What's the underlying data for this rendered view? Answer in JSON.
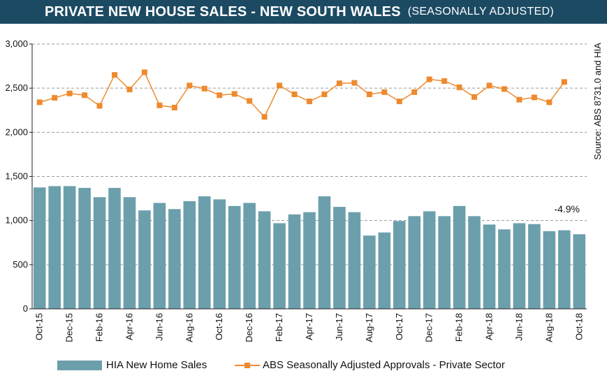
{
  "title": {
    "main": "PRIVATE  NEW HOUSE SALES -  NEW SOUTH WALES",
    "sub": "(SEASONALLY ADJUSTED)"
  },
  "source_note": "Source: ABS 8731.0 and HIA",
  "annotation": "-4.9%",
  "legend": {
    "bar_label": "HIA New Home Sales",
    "line_label": "ABS Seasonally Adjusted Approvals - Private Sector"
  },
  "colors": {
    "title_bg": "#1c4a63",
    "bars": "#6c9fac",
    "line": "#ee8a2e"
  },
  "chart_data": {
    "type": "bar+line",
    "ylim": [
      0,
      3000
    ],
    "yticks": [
      0,
      500,
      1000,
      1500,
      2000,
      2500,
      3000
    ],
    "ytick_labels": [
      "0",
      "500",
      "1,000",
      "1,500",
      "2,000",
      "2,500",
      "3,000"
    ],
    "grid": "dashed horizontal",
    "categories": [
      "Oct-15",
      "Nov-15",
      "Dec-15",
      "Jan-16",
      "Feb-16",
      "Mar-16",
      "Apr-16",
      "May-16",
      "Jun-16",
      "Jul-16",
      "Aug-16",
      "Sep-16",
      "Oct-16",
      "Nov-16",
      "Dec-16",
      "Jan-17",
      "Feb-17",
      "Mar-17",
      "Apr-17",
      "May-17",
      "Jun-17",
      "Jul-17",
      "Aug-17",
      "Sep-17",
      "Oct-17",
      "Nov-17",
      "Dec-17",
      "Jan-18",
      "Feb-18",
      "Mar-18",
      "Apr-18",
      "May-18",
      "Jun-18",
      "Jul-18",
      "Aug-18",
      "Sep-18",
      "Oct-18"
    ],
    "x_tick_labels": [
      "Oct-15",
      "Dec-15",
      "Feb-16",
      "Apr-16",
      "Jun-16",
      "Aug-16",
      "Oct-16",
      "Dec-16",
      "Feb-17",
      "Apr-17",
      "Jun-17",
      "Aug-17",
      "Oct-17",
      "Dec-17",
      "Feb-18",
      "Apr-18",
      "Jun-18",
      "Aug-18",
      "Oct-18"
    ],
    "series": [
      {
        "name": "HIA New Home Sales",
        "kind": "bar",
        "values": [
          1375,
          1390,
          1390,
          1370,
          1265,
          1370,
          1265,
          1115,
          1200,
          1130,
          1220,
          1275,
          1240,
          1165,
          1200,
          1105,
          970,
          1070,
          1095,
          1275,
          1155,
          1095,
          830,
          865,
          995,
          1050,
          1105,
          1050,
          1165,
          1050,
          955,
          900,
          970,
          960,
          880,
          890,
          845
        ]
      },
      {
        "name": "ABS Seasonally Adjusted Approvals - Private Sector",
        "kind": "line",
        "values": [
          2340,
          2390,
          2440,
          2420,
          2300,
          2650,
          2485,
          2680,
          2305,
          2280,
          2530,
          2495,
          2420,
          2435,
          2355,
          2175,
          2530,
          2430,
          2350,
          2430,
          2555,
          2560,
          2430,
          2455,
          2350,
          2455,
          2600,
          2580,
          2510,
          2400,
          2530,
          2490,
          2370,
          2395,
          2340,
          2570,
          null
        ]
      }
    ]
  }
}
